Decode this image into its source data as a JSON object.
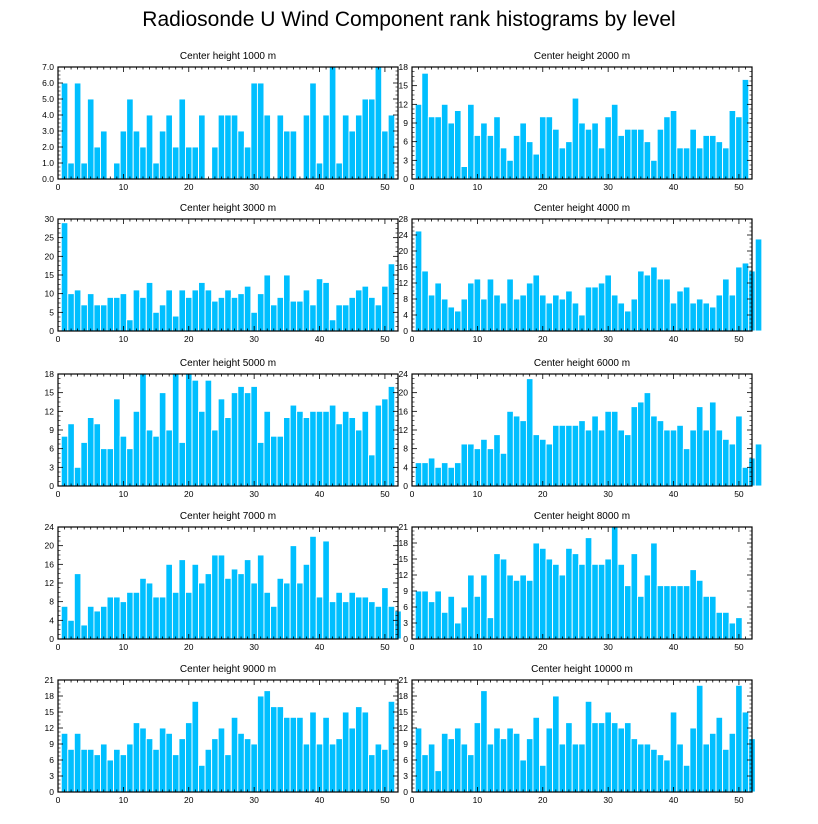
{
  "title": "Radiosonde U Wind Component rank histograms by level",
  "colors": {
    "bar": "#00BFFF",
    "bar_stroke": "#ffffff",
    "axis": "#000000"
  },
  "chart_data": [
    {
      "type": "bar",
      "title": "Center height 1000 m",
      "xlim": [
        0,
        52
      ],
      "xticks": [
        0,
        10,
        20,
        30,
        40,
        50
      ],
      "ylim": [
        0,
        7
      ],
      "yticks": [
        0,
        1,
        2,
        3,
        4,
        5,
        6,
        7
      ],
      "ytick_labels": [
        "0.0",
        "1.0",
        "2.0",
        "3.0",
        "4.0",
        "5.0",
        "6.0",
        "7.0"
      ],
      "values": [
        6,
        1,
        6,
        1,
        5,
        2,
        3,
        0,
        1,
        3,
        5,
        3,
        2,
        4,
        1,
        3,
        4,
        2,
        5,
        2,
        2,
        4,
        0,
        2,
        4,
        4,
        4,
        3,
        2,
        6,
        6,
        4,
        0,
        4,
        3,
        3,
        0,
        4,
        6,
        1,
        4,
        7,
        1,
        4,
        3,
        4,
        5,
        5,
        7,
        3,
        4
      ]
    },
    {
      "type": "bar",
      "title": "Center height 2000 m",
      "xlim": [
        0,
        52
      ],
      "xticks": [
        0,
        10,
        20,
        30,
        40,
        50
      ],
      "ylim": [
        0,
        18
      ],
      "yticks": [
        0,
        3,
        6,
        9,
        12,
        15,
        18
      ],
      "ytick_labels": [
        "0",
        "3",
        "6",
        "9",
        "12",
        "15",
        "18"
      ],
      "values": [
        12,
        17,
        10,
        10,
        12,
        9,
        11,
        2,
        12,
        7,
        9,
        7,
        10,
        5,
        3,
        7,
        9,
        6,
        4,
        10,
        10,
        8,
        5,
        6,
        13,
        9,
        8,
        9,
        5,
        10,
        12,
        7,
        8,
        8,
        8,
        6,
        3,
        8,
        10,
        11,
        5,
        5,
        8,
        5,
        7,
        7,
        6,
        5,
        11,
        10,
        16
      ]
    },
    {
      "type": "bar",
      "title": "Center height 3000 m",
      "xlim": [
        0,
        52
      ],
      "xticks": [
        0,
        10,
        20,
        30,
        40,
        50
      ],
      "ylim": [
        0,
        30
      ],
      "yticks": [
        0,
        5,
        10,
        15,
        20,
        25,
        30
      ],
      "ytick_labels": [
        "0",
        "5",
        "10",
        "15",
        "20",
        "25",
        "30"
      ],
      "values": [
        29,
        10,
        11,
        7,
        10,
        7,
        7,
        9,
        9,
        10,
        3,
        11,
        9,
        13,
        5,
        7,
        11,
        4,
        11,
        9,
        11,
        13,
        11,
        8,
        9,
        11,
        9,
        10,
        12,
        5,
        10,
        15,
        7,
        9,
        15,
        8,
        8,
        11,
        7,
        14,
        13,
        3,
        7,
        7,
        9,
        11,
        12,
        9,
        7,
        12,
        18
      ]
    },
    {
      "type": "bar",
      "title": "Center height 4000 m",
      "xlim": [
        0,
        52
      ],
      "xticks": [
        0,
        10,
        20,
        30,
        40,
        50
      ],
      "ylim": [
        0,
        28
      ],
      "yticks": [
        0,
        4,
        8,
        12,
        16,
        20,
        24,
        28
      ],
      "ytick_labels": [
        "0",
        "4",
        "8",
        "12",
        "16",
        "20",
        "24",
        "28"
      ],
      "values": [
        25,
        15,
        9,
        12,
        8,
        6,
        5,
        8,
        12,
        13,
        8,
        13,
        9,
        7,
        13,
        8,
        9,
        12,
        14,
        9,
        7,
        9,
        8,
        10,
        7,
        4,
        11,
        11,
        12,
        14,
        9,
        7,
        5,
        8,
        15,
        14,
        16,
        13,
        13,
        7,
        10,
        11,
        7,
        8,
        7,
        6,
        9,
        13,
        9,
        16,
        17,
        15,
        23
      ]
    },
    {
      "type": "bar",
      "title": "Center height 5000 m",
      "xlim": [
        0,
        52
      ],
      "xticks": [
        0,
        10,
        20,
        30,
        40,
        50
      ],
      "ylim": [
        0,
        18
      ],
      "yticks": [
        0,
        3,
        6,
        9,
        12,
        15,
        18
      ],
      "ytick_labels": [
        "0",
        "3",
        "6",
        "9",
        "12",
        "15",
        "18"
      ],
      "values": [
        8,
        10,
        3,
        7,
        11,
        10,
        6,
        6,
        14,
        8,
        6,
        12,
        18,
        9,
        8,
        15,
        9,
        18,
        7,
        18,
        17,
        12,
        17,
        9,
        14,
        11,
        15,
        16,
        15,
        16,
        7,
        12,
        8,
        8,
        11,
        13,
        12,
        11,
        12,
        12,
        12,
        13,
        10,
        12,
        11,
        9,
        12,
        5,
        13,
        14,
        16
      ]
    },
    {
      "type": "bar",
      "title": "Center height 6000 m",
      "xlim": [
        0,
        52
      ],
      "xticks": [
        0,
        10,
        20,
        30,
        40,
        50
      ],
      "ylim": [
        0,
        24
      ],
      "yticks": [
        0,
        4,
        8,
        12,
        16,
        20,
        24
      ],
      "ytick_labels": [
        "0",
        "4",
        "8",
        "12",
        "16",
        "20",
        "24"
      ],
      "values": [
        5,
        5,
        6,
        4,
        5,
        4,
        5,
        9,
        9,
        8,
        10,
        8,
        11,
        7,
        16,
        15,
        14,
        23,
        11,
        10,
        9,
        13,
        13,
        13,
        13,
        14,
        12,
        15,
        12,
        16,
        16,
        12,
        11,
        17,
        18,
        20,
        15,
        14,
        12,
        12,
        13,
        8,
        12,
        17,
        12,
        18,
        12,
        10,
        9,
        15,
        4,
        6,
        9
      ]
    },
    {
      "type": "bar",
      "title": "Center height 7000 m",
      "xlim": [
        0,
        52
      ],
      "xticks": [
        0,
        10,
        20,
        30,
        40,
        50
      ],
      "ylim": [
        0,
        24
      ],
      "yticks": [
        0,
        4,
        8,
        12,
        16,
        20,
        24
      ],
      "ytick_labels": [
        "0",
        "4",
        "8",
        "12",
        "16",
        "20",
        "24"
      ],
      "values": [
        7,
        4,
        14,
        3,
        7,
        6,
        7,
        9,
        9,
        8,
        10,
        10,
        13,
        12,
        9,
        9,
        16,
        10,
        17,
        10,
        16,
        12,
        14,
        18,
        18,
        13,
        15,
        14,
        17,
        12,
        18,
        10,
        7,
        13,
        12,
        20,
        12,
        16,
        22,
        9,
        21,
        8,
        10,
        8,
        10,
        9,
        9,
        8,
        7,
        11,
        7,
        6
      ]
    },
    {
      "type": "bar",
      "title": "Center height 8000 m",
      "xlim": [
        0,
        52
      ],
      "xticks": [
        0,
        10,
        20,
        30,
        40,
        50
      ],
      "ylim": [
        0,
        21
      ],
      "yticks": [
        0,
        3,
        6,
        9,
        12,
        15,
        18,
        21
      ],
      "ytick_labels": [
        "0",
        "3",
        "6",
        "9",
        "12",
        "15",
        "18",
        "21"
      ],
      "values": [
        9,
        9,
        7,
        9,
        5,
        8,
        3,
        6,
        12,
        8,
        12,
        4,
        16,
        15,
        12,
        11,
        12,
        11,
        18,
        17,
        15,
        14,
        12,
        17,
        16,
        14,
        19,
        14,
        14,
        15,
        21,
        14,
        10,
        16,
        8,
        12,
        18,
        10,
        10,
        10,
        10,
        10,
        13,
        11,
        8,
        8,
        5,
        5,
        3,
        4
      ]
    },
    {
      "type": "bar",
      "title": "Center height 9000 m",
      "xlim": [
        0,
        52
      ],
      "xticks": [
        0,
        10,
        20,
        30,
        40,
        50
      ],
      "ylim": [
        0,
        21
      ],
      "yticks": [
        0,
        3,
        6,
        9,
        12,
        15,
        18,
        21
      ],
      "ytick_labels": [
        "0",
        "3",
        "6",
        "9",
        "12",
        "15",
        "18",
        "21"
      ],
      "values": [
        11,
        8,
        11,
        8,
        8,
        7,
        9,
        6,
        8,
        7,
        9,
        13,
        12,
        10,
        8,
        12,
        11,
        7,
        10,
        13,
        17,
        5,
        8,
        10,
        12,
        7,
        14,
        11,
        10,
        9,
        18,
        19,
        16,
        16,
        14,
        14,
        14,
        9,
        15,
        9,
        14,
        9,
        10,
        15,
        12,
        16,
        15,
        7,
        9,
        8,
        17
      ]
    },
    {
      "type": "bar",
      "title": "Center height 10000 m",
      "xlim": [
        0,
        52
      ],
      "xticks": [
        0,
        10,
        20,
        30,
        40,
        50
      ],
      "ylim": [
        0,
        21
      ],
      "yticks": [
        0,
        3,
        6,
        9,
        12,
        15,
        18,
        21
      ],
      "ytick_labels": [
        "0",
        "3",
        "6",
        "9",
        "12",
        "15",
        "18",
        "21"
      ],
      "values": [
        12,
        7,
        9,
        4,
        11,
        10,
        12,
        9,
        7,
        13,
        19,
        9,
        12,
        10,
        12,
        11,
        6,
        10,
        14,
        5,
        12,
        18,
        9,
        13,
        9,
        9,
        17,
        13,
        13,
        15,
        13,
        12,
        13,
        10,
        9,
        9,
        8,
        7,
        6,
        15,
        9,
        5,
        12,
        20,
        9,
        11,
        14,
        8,
        11,
        20,
        15,
        10
      ]
    }
  ]
}
